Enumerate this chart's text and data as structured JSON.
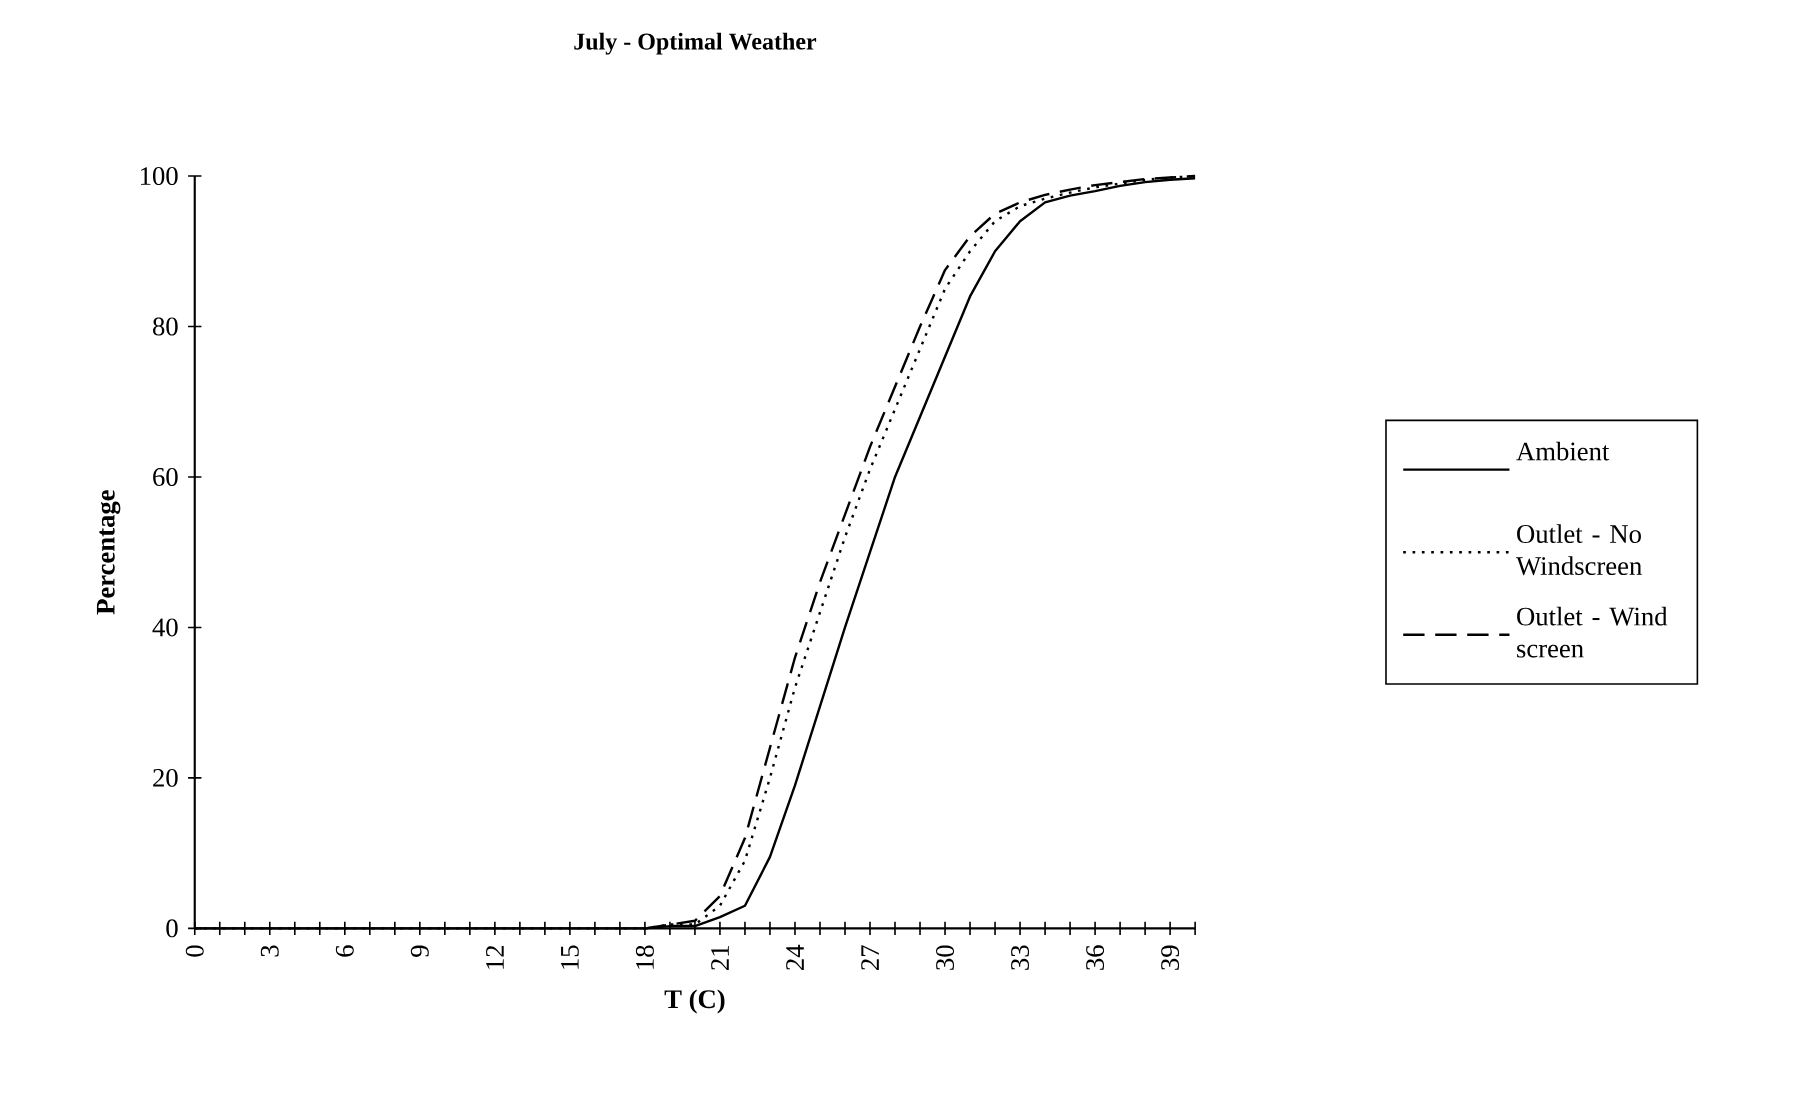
{
  "chart_data": {
    "type": "line",
    "title": "July - Optimal Weather",
    "xlabel": "T (C)",
    "ylabel": "Percentage",
    "categories": [
      "0",
      null,
      null,
      "3",
      null,
      null,
      "6",
      null,
      null,
      "9",
      null,
      null,
      "12",
      null,
      null,
      "15",
      null,
      null,
      "18",
      null,
      null,
      "21",
      null,
      null,
      "24",
      null,
      null,
      "27",
      null,
      null,
      "30",
      null,
      null,
      "33",
      null,
      null,
      "36",
      null,
      null,
      "39",
      null
    ],
    "series": [
      {
        "name": "Ambient",
        "color": "#000000",
        "line_style": "solid",
        "values": [
          0,
          0,
          0,
          0,
          0,
          0,
          0,
          0,
          0,
          0,
          0,
          0,
          0,
          0,
          0,
          0,
          0,
          0,
          0,
          0.3,
          0.3,
          1.5,
          3,
          9.5,
          19,
          29.5,
          40,
          50,
          60,
          68,
          76,
          84,
          90,
          94,
          96.5,
          97.4,
          98,
          98.7,
          99.2,
          99.5,
          99.7
        ]
      },
      {
        "name": "Outlet - No Windscreen",
        "color": "#000000",
        "line_style": "dotted",
        "values": [
          0,
          0,
          0,
          0,
          0,
          0,
          0,
          0,
          0,
          0,
          0,
          0,
          0,
          0,
          0,
          0,
          0,
          0,
          0,
          0.5,
          0.5,
          3,
          9,
          20,
          32,
          42,
          52,
          61,
          69,
          77,
          85,
          90,
          94,
          96,
          97,
          97.8,
          98.5,
          99,
          99.5,
          99.8,
          100
        ]
      },
      {
        "name": "Outlet - Wind screen",
        "color": "#000000",
        "line_style": "dashed",
        "values": [
          null,
          null,
          null,
          null,
          null,
          null,
          null,
          null,
          null,
          null,
          null,
          null,
          null,
          null,
          null,
          null,
          null,
          null,
          0,
          0.5,
          1,
          4.3,
          12,
          24,
          36,
          46,
          55,
          64,
          72,
          80,
          87.5,
          92,
          95,
          96.5,
          97.5,
          98.2,
          98.8,
          99.2,
          99.6,
          99.8,
          100
        ]
      }
    ],
    "ylim": [
      0,
      100
    ],
    "yticks": [
      0,
      20,
      40,
      60,
      80,
      100
    ],
    "grid": false,
    "legend": "right",
    "marker": "none"
  }
}
